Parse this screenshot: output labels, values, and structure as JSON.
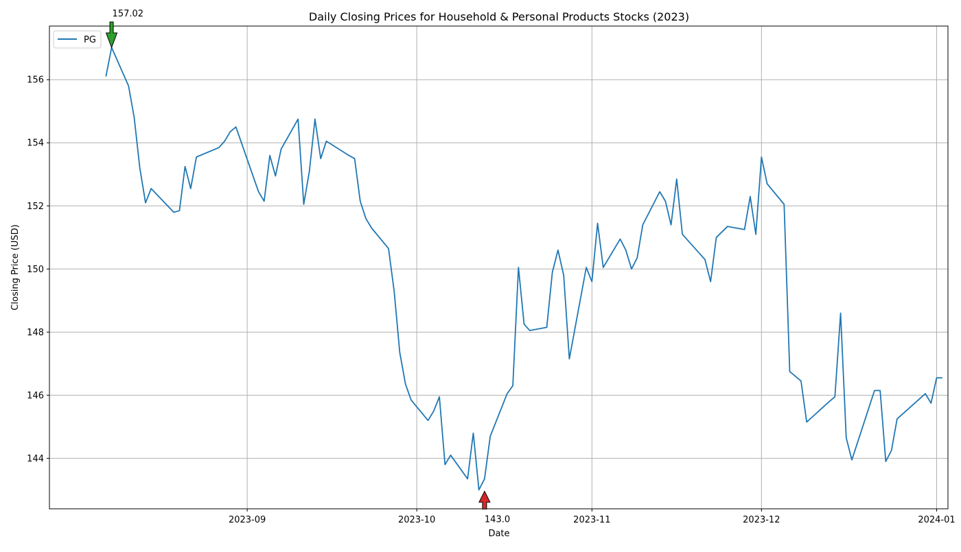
{
  "chart_data": {
    "type": "line",
    "title": "Daily Closing Prices for Household & Personal Products Stocks (2023)",
    "xlabel": "Date",
    "ylabel": "Closing Price (USD)",
    "x_ticks": [
      "2023-09",
      "2023-10",
      "2023-11",
      "2023-12",
      "2024-01"
    ],
    "y_ticks": [
      144,
      146,
      148,
      150,
      152,
      154,
      156
    ],
    "xlim": [
      "2023-07-28",
      "2024-01-03"
    ],
    "ylim": [
      142.4,
      157.7
    ],
    "grid": true,
    "legend_position": "top-left",
    "series": [
      {
        "name": "PG",
        "color": "#1f77b4",
        "x": [
          "2023-08-07",
          "2023-08-08",
          "2023-08-11",
          "2023-08-12",
          "2023-08-13",
          "2023-08-14",
          "2023-08-15",
          "2023-08-19",
          "2023-08-20",
          "2023-08-21",
          "2023-08-22",
          "2023-08-23",
          "2023-08-27",
          "2023-08-28",
          "2023-08-29",
          "2023-08-30",
          "2023-09-03",
          "2023-09-04",
          "2023-09-05",
          "2023-09-06",
          "2023-09-07",
          "2023-09-10",
          "2023-09-11",
          "2023-09-12",
          "2023-09-13",
          "2023-09-14",
          "2023-09-15",
          "2023-09-19",
          "2023-09-20",
          "2023-09-21",
          "2023-09-22",
          "2023-09-23",
          "2023-09-26",
          "2023-09-27",
          "2023-09-28",
          "2023-09-29",
          "2023-09-30",
          "2023-10-03",
          "2023-10-04",
          "2023-10-05",
          "2023-10-06",
          "2023-10-07",
          "2023-10-10",
          "2023-10-11",
          "2023-10-12",
          "2023-10-13",
          "2023-10-14",
          "2023-10-17",
          "2023-10-18",
          "2023-10-19",
          "2023-10-20",
          "2023-10-21",
          "2023-10-24",
          "2023-10-25",
          "2023-10-26",
          "2023-10-27",
          "2023-10-28",
          "2023-10-31",
          "2023-11-01",
          "2023-11-02",
          "2023-11-03",
          "2023-11-06",
          "2023-11-07",
          "2023-11-08",
          "2023-11-09",
          "2023-11-10",
          "2023-11-13",
          "2023-11-14",
          "2023-11-15",
          "2023-11-16",
          "2023-11-17",
          "2023-11-21",
          "2023-11-22",
          "2023-11-23",
          "2023-11-25",
          "2023-11-28",
          "2023-11-29",
          "2023-11-30",
          "2023-12-01",
          "2023-12-02",
          "2023-12-05",
          "2023-12-06",
          "2023-12-08",
          "2023-12-09",
          "2023-12-13",
          "2023-12-14",
          "2023-12-15",
          "2023-12-16",
          "2023-12-17",
          "2023-12-21",
          "2023-12-22",
          "2023-12-23",
          "2023-12-24",
          "2023-12-25",
          "2023-12-30",
          "2023-12-31",
          "2024-01-01",
          "2024-01-02"
        ],
        "values": [
          156.1,
          157.02,
          155.8,
          154.8,
          153.2,
          152.1,
          152.55,
          151.8,
          151.85,
          153.25,
          152.55,
          153.55,
          153.85,
          154.05,
          154.35,
          154.5,
          152.45,
          152.15,
          153.6,
          152.95,
          153.8,
          154.75,
          152.05,
          153.1,
          154.75,
          153.5,
          154.05,
          153.6,
          153.5,
          152.15,
          151.6,
          151.3,
          150.65,
          149.3,
          147.35,
          146.35,
          145.85,
          145.2,
          145.5,
          145.95,
          143.8,
          144.1,
          143.35,
          144.8,
          143.0,
          143.35,
          144.7,
          146.05,
          146.3,
          150.05,
          148.25,
          148.05,
          148.15,
          149.9,
          150.6,
          149.8,
          147.15,
          150.05,
          149.6,
          151.45,
          150.05,
          150.95,
          150.6,
          150.0,
          150.35,
          151.4,
          152.45,
          152.15,
          151.4,
          152.85,
          151.1,
          150.3,
          149.6,
          151.0,
          151.35,
          151.25,
          152.3,
          151.1,
          153.55,
          152.7,
          152.05,
          146.75,
          146.45,
          145.15,
          145.8,
          145.95,
          148.6,
          144.65,
          143.95,
          146.15,
          146.15,
          143.9,
          144.25,
          145.25,
          146.05,
          145.75,
          146.55,
          146.55
        ]
      }
    ],
    "annotations": [
      {
        "label": "157.02",
        "x": "2023-08-08",
        "y": 157.02,
        "arrow": "down",
        "color": "#2ca02c"
      },
      {
        "label": "143.0",
        "x": "2023-10-13",
        "y": 143.0,
        "arrow": "up",
        "color": "#d62728"
      }
    ]
  }
}
